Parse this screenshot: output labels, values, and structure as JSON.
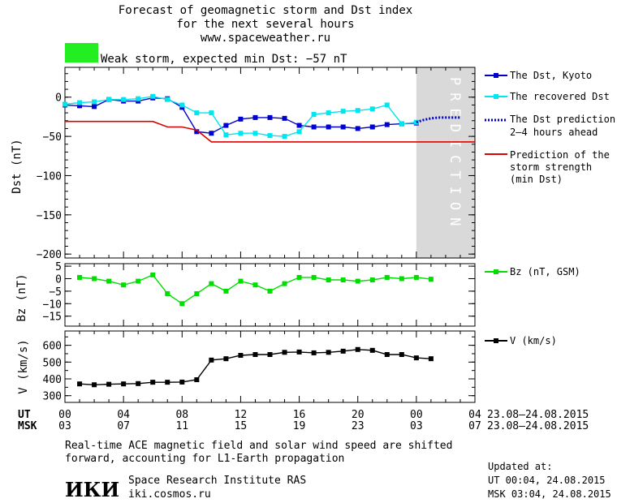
{
  "header": {
    "title_lines": [
      "Forecast of geomagnetic storm and Dst index",
      "for the next several hours",
      "www.spaceweather.ru"
    ],
    "storm_label": "Weak storm, expected min Dst: −57 nT",
    "storm_color": "#22ee22"
  },
  "prediction_label": "PREDICTION",
  "legend": {
    "dst_kyoto": "The Dst, Kyoto",
    "dst_recovered": "The recovered Dst",
    "dst_prediction": [
      "The Dst prediction",
      "2–4 hours ahead"
    ],
    "storm_strength": [
      "Prediction of the",
      "storm strength",
      "(min Dst)"
    ],
    "bz": "Bz (nT, GSM)",
    "v": "V (km/s)"
  },
  "colors": {
    "dst_kyoto": "#0000cc",
    "dst_recovered": "#00e5ee",
    "dst_prediction": "#0000cc",
    "storm_strength": "#dd0000",
    "bz": "#00dd00",
    "v": "#000000",
    "prediction_band": "#d9d9d9"
  },
  "time_axis": {
    "ut_label": "UT",
    "msk_label": "MSK",
    "ut_ticks": [
      "00",
      "04",
      "08",
      "12",
      "16",
      "20",
      "00",
      "04"
    ],
    "msk_ticks": [
      "03",
      "07",
      "11",
      "15",
      "19",
      "23",
      "03",
      "07"
    ],
    "date_range_ut": "23.08–24.08.2015",
    "date_range_msk": "23.08–24.08.2015"
  },
  "footer": {
    "note_lines": [
      "Real-time ACE magnetic field and solar wind speed are shifted",
      "forward, accounting for L1-Earth propagation"
    ],
    "logo": "ИКИ",
    "institute": "Space Research Institute RAS",
    "website": "iki.cosmos.ru",
    "updated_title": "Updated at:",
    "updated_ut": "UT   00:04, 24.08.2015",
    "updated_msk": "MSK 03:04, 24.08.2015"
  },
  "chart_data": [
    {
      "type": "line",
      "ylabel": "Dst (nT)",
      "x_unit": "hours UT from 00 23.08.2015",
      "xlim": [
        0,
        28
      ],
      "ylim": [
        -205,
        38
      ],
      "yticks": [
        0,
        -50,
        -100,
        -150,
        -200
      ],
      "ytick_labels": [
        "0",
        "−50",
        "−100",
        "−150",
        "−200"
      ],
      "prediction_band": [
        24,
        28
      ],
      "series": [
        {
          "name": "The Dst, Kyoto",
          "key": "dst_kyoto",
          "style": "line-square",
          "x": [
            0,
            1,
            2,
            3,
            4,
            5,
            6,
            7,
            8,
            9,
            10,
            11,
            12,
            13,
            14,
            15,
            16,
            17,
            18,
            19,
            20,
            21,
            22,
            23,
            24
          ],
          "y": [
            -10,
            -11,
            -12,
            -3,
            -5,
            -5,
            -1,
            -2,
            -13,
            -44,
            -46,
            -36,
            -28,
            -26,
            -26,
            -27,
            -36,
            -38,
            -38,
            -38,
            -40,
            -38,
            -35,
            -34,
            -33
          ]
        },
        {
          "name": "The recovered Dst",
          "key": "dst_recovered",
          "style": "line-square",
          "x": [
            0,
            1,
            2,
            3,
            4,
            5,
            6,
            7,
            8,
            9,
            10,
            11,
            12,
            13,
            14,
            15,
            16,
            17,
            18,
            19,
            20,
            21,
            22,
            23,
            24
          ],
          "y": [
            -9,
            -7,
            -6,
            -3,
            -3,
            -2,
            1,
            -3,
            -10,
            -20,
            -20,
            -48,
            -46,
            -46,
            -49,
            -50,
            -44,
            -22,
            -20,
            -18,
            -17,
            -15,
            -10,
            -34,
            -32
          ]
        },
        {
          "name": "The Dst prediction 2–4 hours ahead",
          "key": "dst_prediction",
          "style": "dotted",
          "x": [
            24,
            24.5,
            25,
            25.5,
            26,
            26.5,
            27
          ],
          "y": [
            -32,
            -29,
            -27,
            -26,
            -26,
            -26,
            -26
          ]
        },
        {
          "name": "Prediction of the storm strength (min Dst)",
          "key": "storm_strength",
          "style": "line",
          "x": [
            0,
            6,
            7,
            8,
            9,
            10,
            28
          ],
          "y": [
            -31,
            -31,
            -38,
            -38,
            -42,
            -57,
            -57
          ]
        }
      ]
    },
    {
      "type": "line",
      "ylabel": "Bz (nT)",
      "xlim": [
        0,
        28
      ],
      "ylim": [
        -19,
        6
      ],
      "yticks": [
        5,
        0,
        -5,
        -10,
        -15
      ],
      "ytick_labels": [
        "5",
        "0",
        "−5",
        "−10",
        "−15"
      ],
      "series": [
        {
          "name": "Bz (nT, GSM)",
          "key": "bz",
          "style": "line-square",
          "x": [
            1,
            2,
            3,
            4,
            5,
            6,
            7,
            8,
            9,
            10,
            11,
            12,
            13,
            14,
            15,
            16,
            17,
            18,
            19,
            20,
            21,
            22,
            23,
            24,
            25
          ],
          "y": [
            0.5,
            0,
            -1,
            -2.5,
            -1,
            1.5,
            -6,
            -10,
            -6,
            -2,
            -5,
            -1,
            -2.5,
            -5,
            -2,
            0.5,
            0.5,
            -0.5,
            -0.5,
            -1,
            -0.5,
            0.5,
            0,
            0.5,
            -0.2
          ]
        }
      ]
    },
    {
      "type": "line",
      "ylabel": "V (km/s)",
      "xlim": [
        0,
        28
      ],
      "ylim": [
        260,
        685
      ],
      "yticks": [
        600,
        500,
        400,
        300
      ],
      "ytick_labels": [
        "600",
        "500",
        "400",
        "300"
      ],
      "series": [
        {
          "name": "V (km/s)",
          "key": "v",
          "style": "line-square",
          "x": [
            1,
            2,
            3,
            4,
            5,
            6,
            7,
            8,
            9,
            10,
            11,
            12,
            13,
            14,
            15,
            16,
            17,
            18,
            19,
            20,
            21,
            22,
            23,
            24,
            25
          ],
          "y": [
            370,
            365,
            368,
            370,
            372,
            380,
            380,
            381,
            395,
            512,
            520,
            540,
            545,
            545,
            558,
            560,
            555,
            558,
            565,
            575,
            570,
            545,
            545,
            525,
            520
          ]
        }
      ]
    }
  ]
}
